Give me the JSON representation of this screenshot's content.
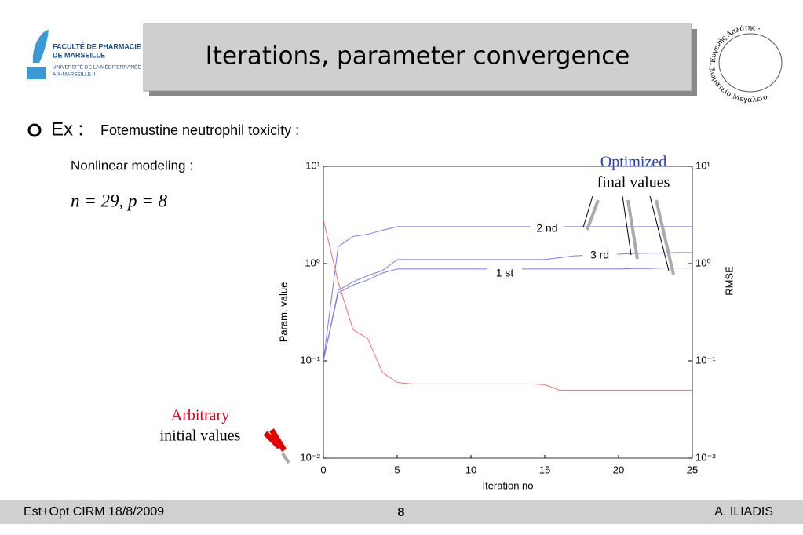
{
  "header": {
    "logo_lines": [
      "FACULTÉ DE PHARMACIE",
      "DE MARSEILLE",
      "UNIVERSITÉ DE LA MÉDITERRANÉE",
      "AIX-MARSEILLE II"
    ],
    "title": "Iterations, parameter convergence",
    "emblem_top": "Ευγενής Απλότης -",
    "emblem_bottom": "- Σωματείο Μεγαλείο"
  },
  "body": {
    "bullet_lead": "Ex :",
    "bullet_text": "Fotemustine neutrophil toxicity :",
    "subtitle": "Nonlinear modeling :",
    "equation": "n = 29,  p = 8"
  },
  "chart_data": {
    "type": "line",
    "xlabel": "Iteration no",
    "ylabel": "Param. value",
    "y2label": "RMSE",
    "log_scale": true,
    "x": [
      0,
      1,
      2,
      3,
      4,
      5,
      6,
      7,
      8,
      9,
      10,
      11,
      12,
      13,
      14,
      15,
      16,
      17,
      18,
      19,
      20,
      21,
      22,
      23,
      24,
      25
    ],
    "xlim": [
      0,
      25
    ],
    "xticks": [
      0,
      5,
      10,
      15,
      20,
      25
    ],
    "ylim": [
      0.01,
      10
    ],
    "yticks": [
      {
        "value": 0.01,
        "label": "10⁻²"
      },
      {
        "value": 0.1,
        "label": "10⁻¹"
      },
      {
        "value": 1,
        "label": "10⁰"
      },
      {
        "value": 10,
        "label": "10¹"
      }
    ],
    "y2lim": [
      0.01,
      10
    ],
    "y2ticks": [
      {
        "value": 0.01,
        "label": "10⁻²"
      },
      {
        "value": 0.1,
        "label": "10⁻¹"
      },
      {
        "value": 1,
        "label": "10⁰"
      },
      {
        "value": 10,
        "label": "10¹"
      }
    ],
    "series": [
      {
        "name": "2 nd",
        "color": "#7b7bf0",
        "values": [
          0.1,
          1.5,
          1.9,
          2.0,
          2.2,
          2.4,
          2.4,
          2.4,
          2.4,
          2.4,
          2.4,
          2.4,
          2.4,
          2.4,
          2.4,
          2.4,
          2.4,
          2.4,
          2.4,
          2.4,
          2.4,
          2.4,
          2.4,
          2.4,
          2.4,
          2.4
        ]
      },
      {
        "name": "3 rd",
        "color": "#7b7bf0",
        "values": [
          0.1,
          0.53,
          0.65,
          0.75,
          0.85,
          1.1,
          1.1,
          1.1,
          1.1,
          1.1,
          1.1,
          1.1,
          1.1,
          1.1,
          1.1,
          1.1,
          1.15,
          1.2,
          1.22,
          1.24,
          1.25,
          1.27,
          1.28,
          1.29,
          1.3,
          1.3
        ]
      },
      {
        "name": "1 st",
        "color": "#7b7bf0",
        "values": [
          0.1,
          0.5,
          0.6,
          0.68,
          0.8,
          0.88,
          0.88,
          0.88,
          0.88,
          0.88,
          0.88,
          0.88,
          0.88,
          0.88,
          0.88,
          0.88,
          0.88,
          0.88,
          0.88,
          0.88,
          0.88,
          0.89,
          0.89,
          0.9,
          0.9,
          0.9
        ]
      },
      {
        "color": "#f07070",
        "axis": "y2",
        "values": [
          2.8,
          0.65,
          0.21,
          0.17,
          0.076,
          0.06,
          0.058,
          0.058,
          0.058,
          0.058,
          0.058,
          0.058,
          0.058,
          0.058,
          0.058,
          0.057,
          0.05,
          0.05,
          0.05,
          0.05,
          0.05,
          0.05,
          0.05,
          0.05,
          0.05,
          0.05
        ]
      }
    ],
    "annotations": {
      "optimized": "Optimized",
      "final": "final values",
      "arbitrary": "Arbitrary",
      "initial": "initial values"
    }
  },
  "footer": {
    "left": "Est+Opt CIRM 18/8/2009",
    "page": "8",
    "right": "A. ILIADIS"
  }
}
